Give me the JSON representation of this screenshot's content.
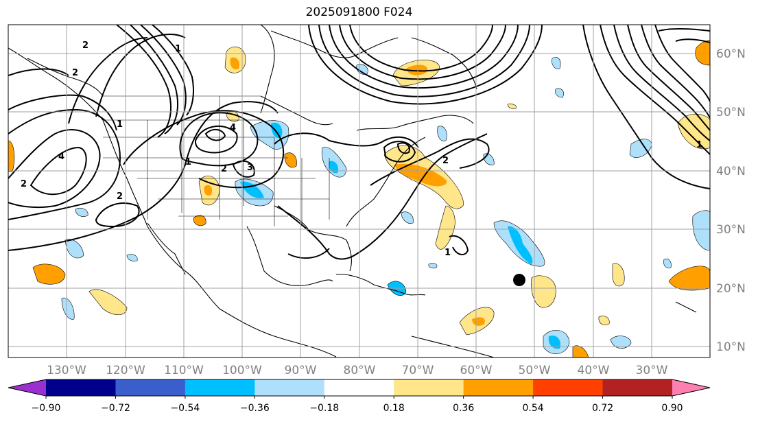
{
  "title": "2025091800 F024",
  "lon_labels": [
    "130°W",
    "120°W",
    "110°W",
    "100°W",
    "90°W",
    "80°W",
    "70°W",
    "60°W",
    "50°W",
    "40°W",
    "30°W"
  ],
  "lat_labels": [
    "60°N",
    "50°N",
    "40°N",
    "30°N",
    "20°N",
    "10°N"
  ],
  "colorbar": {
    "ticks": [
      "−0.90",
      "−0.72",
      "−0.54",
      "−0.36",
      "−0.18",
      "0.18",
      "0.36",
      "0.54",
      "0.72",
      "0.90"
    ],
    "colors": [
      "#9b30d0",
      "#00008b",
      "#3a5fcd",
      "#00bfff",
      "#afe0fb",
      "#ffffff",
      "#ffe68a",
      "#ffa000",
      "#ff4000",
      "#b22222",
      "#ff80b0"
    ],
    "extend": "both"
  },
  "contour_labels": [
    "2",
    "4",
    "2",
    "1",
    "2",
    "4",
    "3",
    "1",
    "2",
    "2",
    "1",
    "1",
    "2",
    "1"
  ],
  "marker": "black-dot",
  "colors": {
    "contour": "#000000",
    "grid": "#a0a0a0",
    "coast": "#000000"
  }
}
